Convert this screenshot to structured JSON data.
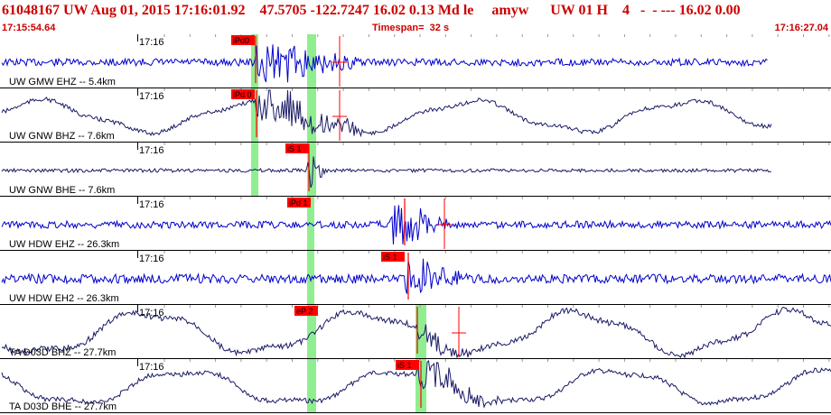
{
  "header": {
    "title": "61048167 UW Aug 01, 2015 17:16:01.92    47.5705 -122.7247 16.02 0.13 Md le     amyw      UW 01 H    4   -  - --- 16.02 0.00",
    "start_time": "17:15:54.64",
    "timespan": "Timespan=  32 s",
    "end_time": "17:16:27.04"
  },
  "colors": {
    "title_red": "#cc0000",
    "trace_blue": "#0000cc",
    "trace_dark": "#1a1a66",
    "pick_red": "#ff0000",
    "window_green": "#90ee90",
    "minor_tick": "#999999"
  },
  "axis": {
    "tick_label": "17:16"
  },
  "traces": [
    {
      "label": "UW GMW EHZ -- 5.4km",
      "pick": "iPd0",
      "style": "blue"
    },
    {
      "label": "UW GNW BHZ -- 7.6km",
      "pick": "iPd 0",
      "style": "dark"
    },
    {
      "label": "UW GNW BHE -- 7.6km",
      "pick": "iS 1",
      "style": "dark"
    },
    {
      "label": "UW HDW EHZ -- 26.3km",
      "pick": "iPd 1",
      "style": "blue"
    },
    {
      "label": "UW HDW EH2 -- 26.3km",
      "pick": "iS 1",
      "style": "blue"
    },
    {
      "label": "TA D03D BHZ -- 27.7km",
      "pick": "eP 2",
      "style": "dark"
    },
    {
      "label": "TA D03D BHE -- 27.7km",
      "pick": "iS 1",
      "style": "dark"
    }
  ]
}
